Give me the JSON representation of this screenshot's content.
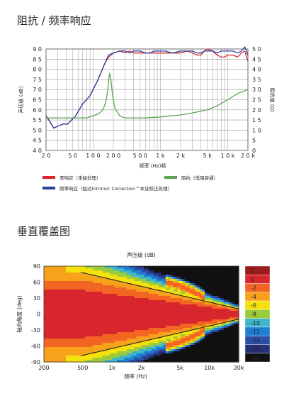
{
  "sections": {
    "fr_title": "阻抗 / 频率响应",
    "dir_title": "垂直覆盖图"
  },
  "chart_data": [
    {
      "type": "line",
      "log_x": true,
      "x_range": [
        20,
        20000
      ],
      "y_left_range": [
        40,
        90
      ],
      "y_right_range": [
        0,
        50
      ],
      "x_ticks": [
        {
          "v": 20,
          "t": "2 0"
        },
        {
          "v": 50,
          "t": "5 0"
        },
        {
          "v": 100,
          "t": "1 0 0"
        },
        {
          "v": 200,
          "t": "2 0 0"
        },
        {
          "v": 500,
          "t": "5 0 0"
        },
        {
          "v": 1000,
          "t": "1 k"
        },
        {
          "v": 2000,
          "t": "2 k"
        },
        {
          "v": 5000,
          "t": "5 k"
        },
        {
          "v": 10000,
          "t": "1 0 k"
        },
        {
          "v": 20000,
          "t": "2 0 k"
        }
      ],
      "y_left_ticks": [
        "4 0",
        "4 5",
        "5 0",
        "5 5",
        "6 0",
        "6 5",
        "7 0",
        "7 5",
        "8 0",
        "8 5",
        "9 0"
      ],
      "y_right_ticks": [
        "0",
        "5",
        "1 0",
        "1 5",
        "2 0",
        "2 5",
        "3 0",
        "3 5",
        "4 0",
        "4 5",
        "5 0"
      ],
      "xlabel": "频率 (Hz)频",
      "ylabel_left": "声压级 (dB)",
      "ylabel_right": "阻抗值 (Ω)",
      "grid": true,
      "legend_position": "bottom",
      "series": [
        {
          "name": "率响应（未经处理）",
          "color": "#d8262e",
          "axis": "left",
          "points": [
            [
              20,
              57
            ],
            [
              23,
              54
            ],
            [
              26,
              51
            ],
            [
              30,
              52
            ],
            [
              36,
              53
            ],
            [
              42,
              53
            ],
            [
              48,
              55
            ],
            [
              55,
              57
            ],
            [
              62,
              60
            ],
            [
              70,
              63
            ],
            [
              80,
              65
            ],
            [
              90,
              67
            ],
            [
              100,
              70
            ],
            [
              115,
              74
            ],
            [
              130,
              78
            ],
            [
              150,
              83
            ],
            [
              170,
              86
            ],
            [
              200,
              88
            ],
            [
              250,
              89
            ],
            [
              300,
              88
            ],
            [
              350,
              89
            ],
            [
              400,
              88
            ],
            [
              500,
              88
            ],
            [
              600,
              88
            ],
            [
              700,
              88
            ],
            [
              800,
              88
            ],
            [
              1000,
              88
            ],
            [
              1200,
              88
            ],
            [
              1500,
              88
            ],
            [
              2000,
              88
            ],
            [
              2500,
              89
            ],
            [
              3000,
              88
            ],
            [
              3500,
              87
            ],
            [
              4000,
              87
            ],
            [
              4500,
              89
            ],
            [
              5000,
              90
            ],
            [
              6000,
              89
            ],
            [
              7000,
              87
            ],
            [
              8000,
              86
            ],
            [
              9000,
              86
            ],
            [
              10000,
              87
            ],
            [
              12000,
              87
            ],
            [
              14000,
              86
            ],
            [
              16000,
              88
            ],
            [
              18000,
              89
            ],
            [
              19000,
              86
            ],
            [
              20000,
              84
            ]
          ]
        },
        {
          "name": "频率响应（经过Intrinsic Correction™本证校正处理）",
          "color": "#2a3f9c",
          "axis": "left",
          "points": [
            [
              20,
              57
            ],
            [
              23,
              54
            ],
            [
              26,
              51
            ],
            [
              30,
              52
            ],
            [
              36,
              53
            ],
            [
              42,
              53
            ],
            [
              48,
              55
            ],
            [
              55,
              57
            ],
            [
              62,
              60
            ],
            [
              70,
              63
            ],
            [
              80,
              65
            ],
            [
              90,
              67
            ],
            [
              100,
              70
            ],
            [
              115,
              74
            ],
            [
              130,
              78
            ],
            [
              150,
              83
            ],
            [
              170,
              87
            ],
            [
              200,
              88
            ],
            [
              250,
              89
            ],
            [
              300,
              89
            ],
            [
              350,
              88
            ],
            [
              400,
              89
            ],
            [
              500,
              89
            ],
            [
              600,
              88
            ],
            [
              700,
              88
            ],
            [
              800,
              89
            ],
            [
              1000,
              89
            ],
            [
              1200,
              89
            ],
            [
              1500,
              88
            ],
            [
              2000,
              89
            ],
            [
              2500,
              89
            ],
            [
              3000,
              89
            ],
            [
              3500,
              88
            ],
            [
              4000,
              88
            ],
            [
              4500,
              89
            ],
            [
              5000,
              89
            ],
            [
              6000,
              89
            ],
            [
              7000,
              88
            ],
            [
              8000,
              89
            ],
            [
              10000,
              89
            ],
            [
              12000,
              89
            ],
            [
              14000,
              88
            ],
            [
              16000,
              89
            ],
            [
              18000,
              91
            ],
            [
              19000,
              89
            ],
            [
              20000,
              87
            ]
          ]
        },
        {
          "name": "阻抗（低阻旁通）",
          "color": "#5aa552",
          "axis": "right",
          "points": [
            [
              20,
              16
            ],
            [
              30,
              16
            ],
            [
              40,
              16
            ],
            [
              60,
              16
            ],
            [
              80,
              16
            ],
            [
              100,
              17
            ],
            [
              120,
              18
            ],
            [
              140,
              20
            ],
            [
              155,
              24
            ],
            [
              165,
              30
            ],
            [
              172,
              36
            ],
            [
              178,
              38
            ],
            [
              185,
              34
            ],
            [
              195,
              27
            ],
            [
              210,
              21
            ],
            [
              250,
              17
            ],
            [
              300,
              16
            ],
            [
              400,
              16
            ],
            [
              600,
              16
            ],
            [
              1000,
              16.5
            ],
            [
              2000,
              17.5
            ],
            [
              3000,
              18.5
            ],
            [
              5000,
              20
            ],
            [
              7000,
              22
            ],
            [
              10000,
              25
            ],
            [
              14000,
              28
            ],
            [
              20000,
              30
            ]
          ]
        }
      ]
    },
    {
      "type": "heatmap",
      "title": "声压级 (dB)",
      "xlabel": "频率 (Hz)",
      "ylabel": "轴向角度 (deg)",
      "log_x": true,
      "x_range": [
        200,
        20000
      ],
      "y_range": [
        -90,
        90
      ],
      "x_ticks": [
        {
          "v": 200,
          "t": "200"
        },
        {
          "v": 500,
          "t": "500"
        },
        {
          "v": 1000,
          "t": "1k"
        },
        {
          "v": 2000,
          "t": "2k"
        },
        {
          "v": 5000,
          "t": "5k"
        },
        {
          "v": 10000,
          "t": "10k"
        },
        {
          "v": 20000,
          "t": "20k"
        }
      ],
      "y_ticks": [
        "90",
        "60",
        "30",
        "0",
        "-30",
        "-60",
        "-90"
      ],
      "colorbar": {
        "labels": [
          "2",
          "0",
          "-2",
          "-4",
          "-6",
          "-8",
          "-10",
          "-12",
          "-14",
          "-16",
          "-18"
        ],
        "colors": [
          "#9c1c1e",
          "#d8262e",
          "#f26522",
          "#f7a21b",
          "#f5e20c",
          "#9ccc3c",
          "#3fb6c8",
          "#1f7fd1",
          "#2a4ea6",
          "#26307a",
          "#111111"
        ]
      }
    }
  ],
  "legend": {
    "red": "率响应（未经处理）",
    "green": "阻抗（低阻旁通）",
    "blue": "频率响应（经过Intrinsic Correction™本证校正处理）"
  }
}
